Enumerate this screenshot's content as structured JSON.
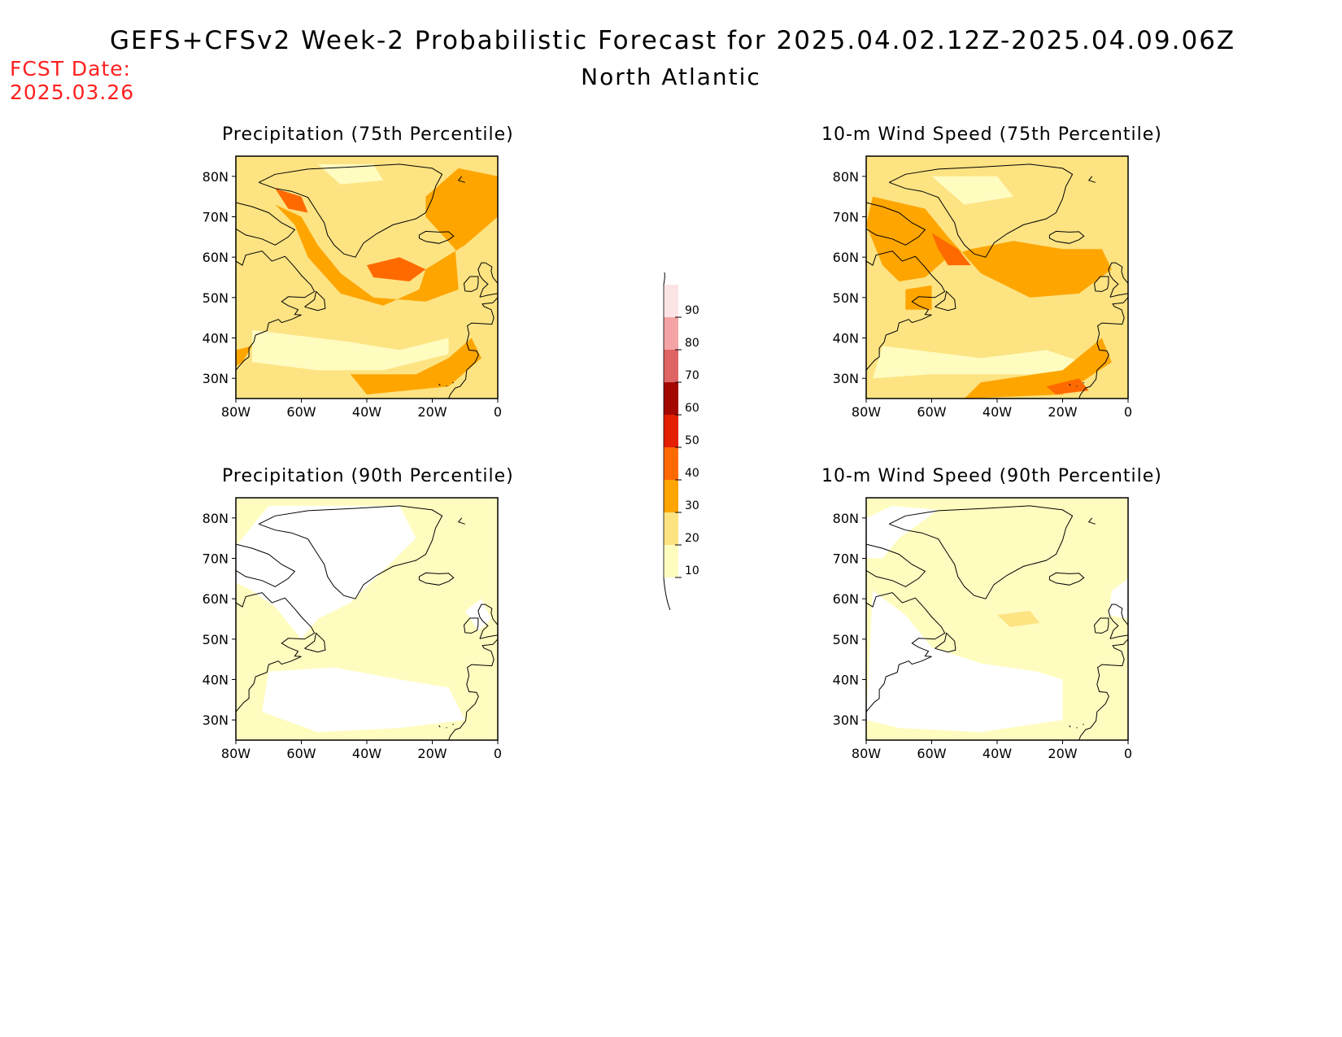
{
  "header": {
    "title": "GEFS+CFSv2 Week-2 Probabilistic Forecast for 2025.04.02.12Z-2025.04.09.06Z",
    "region": "North Atlantic",
    "fcst_label": "FCST Date:",
    "fcst_date": "2025.03.26"
  },
  "axes": {
    "lat_ticks": [
      "80N",
      "70N",
      "60N",
      "50N",
      "40N",
      "30N"
    ],
    "lon_ticks": [
      "80W",
      "60W",
      "40W",
      "20W",
      "0"
    ],
    "lat_range": [
      25,
      85
    ],
    "lon_range": [
      -80,
      0
    ]
  },
  "colorbar": {
    "ticks": [
      "10",
      "20",
      "30",
      "40",
      "50",
      "60",
      "70",
      "80",
      "90"
    ],
    "colors": [
      "#fffcc0",
      "#fde382",
      "#fea500",
      "#ff6a00",
      "#e41e00",
      "#a20800",
      "#df6464",
      "#f4a4a4",
      "#fde4e4"
    ]
  },
  "panels": [
    {
      "id": "precip-75",
      "title": "Precipitation (75th Percentile)",
      "coverage": "high",
      "summary": "20-40% broadly, 40-50% south of Greenland and near Baffin Bay"
    },
    {
      "id": "wind-75",
      "title": "10-m Wind Speed (75th Percentile)",
      "coverage": "high",
      "summary": "20-40% broadly, 40-50% from Labrador Sea to central North Atlantic"
    },
    {
      "id": "precip-90",
      "title": "Precipitation (90th Percentile)",
      "coverage": "low",
      "summary": "mostly 10-20%, below 10% over Greenland and western subtropics"
    },
    {
      "id": "wind-90",
      "title": "10-m Wind Speed (90th Percentile)",
      "coverage": "low",
      "summary": "mostly 10-20%, below 10% over much of the subtropics"
    }
  ]
}
